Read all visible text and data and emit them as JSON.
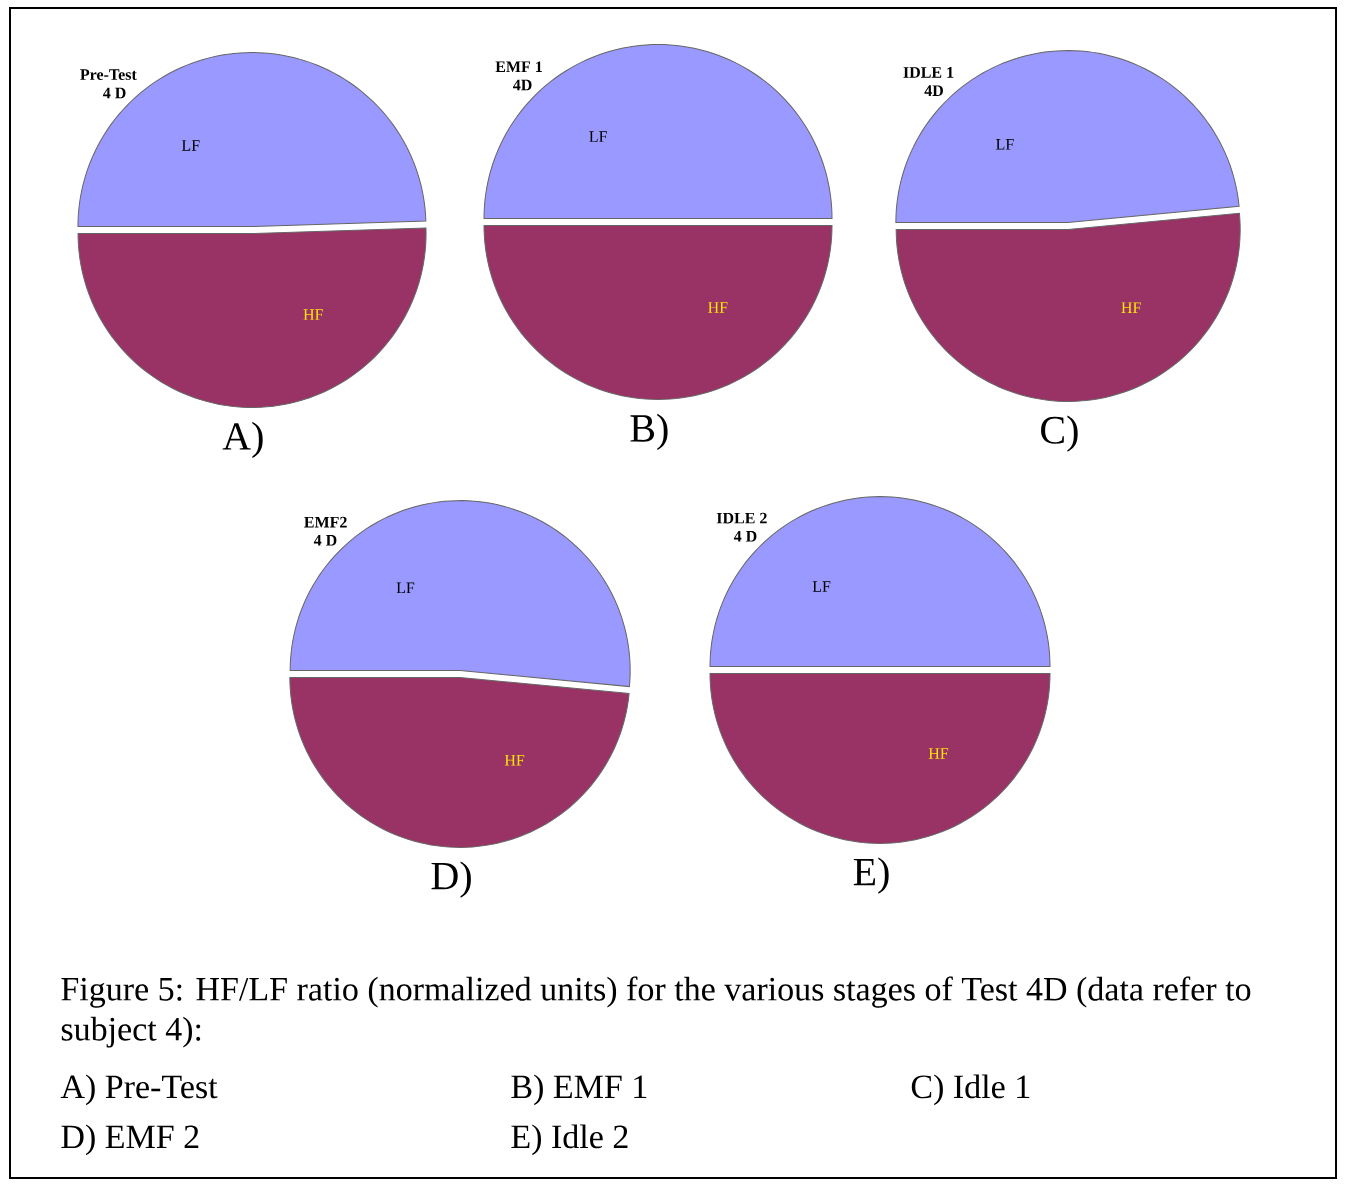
{
  "chart_data": [
    {
      "type": "pie",
      "title": "Pre-Test",
      "subtitle": "4 D",
      "xlabel": "A)",
      "categories": [
        "LF",
        "HF"
      ],
      "values": [
        49.5,
        50.5
      ],
      "colors": [
        "#9999ff",
        "#993366"
      ],
      "annotations": [
        "Figure 5: HF/LF ratio (normalized units) for the various stages of Test 4D (data refer to subject 4):",
        "A) Pre-Test",
        "B) EMF 1",
        "C) Idle 1",
        "D)  EMF 2",
        "E) Idle 2"
      ]
    },
    {
      "type": "pie",
      "title": "EMF 1",
      "subtitle": "4D",
      "xlabel": "B)",
      "categories": [
        "LF",
        "HF"
      ],
      "values": [
        50,
        50
      ],
      "colors": [
        "#9999ff",
        "#993366"
      ]
    },
    {
      "type": "pie",
      "title": "IDLE 1",
      "subtitle": "4D",
      "xlabel": "C)",
      "categories": [
        "LF",
        "HF"
      ],
      "values": [
        48.5,
        51.5
      ],
      "colors": [
        "#9999ff",
        "#993366"
      ]
    },
    {
      "type": "pie",
      "title": "EMF2",
      "subtitle": "4 D",
      "xlabel": "D)",
      "categories": [
        "LF",
        "HF"
      ],
      "values": [
        51.5,
        48.5
      ],
      "colors": [
        "#9999ff",
        "#993366"
      ]
    },
    {
      "type": "pie",
      "title": "IDLE 2",
      "subtitle": "4 D",
      "xlabel": "E)",
      "categories": [
        "LF",
        "HF"
      ],
      "values": [
        50,
        50
      ],
      "colors": [
        "#9999ff",
        "#993366"
      ]
    }
  ]
}
